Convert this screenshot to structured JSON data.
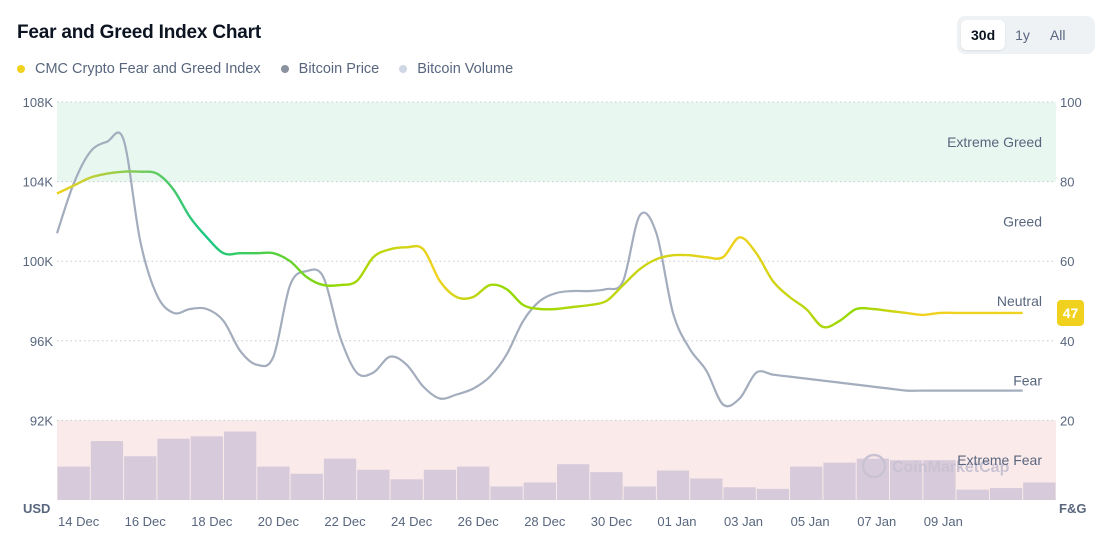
{
  "title": "Fear and Greed Index Chart",
  "legend": [
    {
      "label": "CMC Crypto Fear and Greed Index",
      "color": "#f0d21e"
    },
    {
      "label": "Bitcoin Price",
      "color": "#8a929f"
    },
    {
      "label": "Bitcoin Volume",
      "color": "#cfd6e4"
    }
  ],
  "range_buttons": [
    {
      "label": "30d",
      "active": true
    },
    {
      "label": "1y",
      "active": false
    },
    {
      "label": "All",
      "active": false
    }
  ],
  "watermark": "CoinMarketCap",
  "colors": {
    "fear_greed_line_start": "#16c784",
    "fear_greed_line_mid": "#93d900",
    "fear_greed_line_end": "#f0d21e",
    "btc_price_line": "#a3adbd",
    "btc_volume_bars": "#d7cbdb",
    "extreme_greed_band": "#e9f7f1",
    "extreme_fear_band": "#fbeaea",
    "badge": "#f0d21e"
  },
  "chart_data": {
    "type": "line",
    "x_unit": "day",
    "x_ticks": [
      "14 Dec",
      "16 Dec",
      "18 Dec",
      "20 Dec",
      "22 Dec",
      "24 Dec",
      "26 Dec",
      "28 Dec",
      "30 Dec",
      "01 Jan",
      "03 Jan",
      "05 Jan",
      "07 Jan",
      "09 Jan"
    ],
    "left_axis": {
      "label": "USD",
      "ticks": [
        "108K",
        "104K",
        "100K",
        "96K",
        "92K"
      ],
      "range": [
        88000,
        108000
      ]
    },
    "right_axis": {
      "label": "F&G",
      "ticks": [
        "100",
        "80",
        "60",
        "40",
        "20"
      ],
      "range": [
        0,
        100
      ]
    },
    "zones": [
      {
        "label": "Extreme Greed",
        "range": [
          80,
          100
        ],
        "shaded": true
      },
      {
        "label": "Greed",
        "range": [
          60,
          80
        ],
        "shaded": false
      },
      {
        "label": "Neutral",
        "range": [
          40,
          60
        ],
        "shaded": false
      },
      {
        "label": "Fear",
        "range": [
          20,
          40
        ],
        "shaded": false
      },
      {
        "label": "Extreme Fear",
        "range": [
          0,
          20
        ],
        "shaded": true
      }
    ],
    "series": [
      {
        "name": "CMC Crypto Fear and Greed Index",
        "axis": "right",
        "x": [
          0,
          0.5,
          1,
          1.5,
          2,
          2.5,
          3,
          3.5,
          4,
          4.5,
          5,
          5.5,
          6,
          6.5,
          7,
          7.5,
          8,
          8.5,
          9,
          9.5,
          10,
          10.5,
          11,
          11.5,
          12,
          12.5,
          13,
          13.5,
          14,
          14.5,
          15,
          15.5,
          16,
          16.5,
          17,
          17.5,
          18,
          18.5,
          19,
          19.5,
          20,
          20.5,
          21,
          21.5,
          22,
          22.5,
          23,
          23.5,
          24,
          24.5,
          25,
          25.5,
          26,
          26.5,
          27,
          27.5,
          28,
          28.5,
          29
        ],
        "values": [
          77,
          79,
          81,
          82,
          82.5,
          82.5,
          82,
          78,
          71,
          66,
          62,
          62,
          62,
          62,
          60,
          56,
          54,
          54,
          55,
          61,
          63,
          63.5,
          63,
          55,
          51,
          51,
          54,
          53,
          49,
          48,
          48,
          48.5,
          49,
          50,
          54,
          58,
          60.5,
          61.5,
          61.5,
          61,
          61,
          66,
          62,
          55,
          51,
          48,
          43.5,
          45,
          48,
          48,
          47.5,
          47,
          46.5,
          47,
          47,
          47,
          47,
          47,
          47
        ],
        "current_value": 47
      },
      {
        "name": "Bitcoin Price",
        "axis": "left",
        "x": [
          0,
          0.5,
          1,
          1.5,
          2,
          2.5,
          3,
          3.5,
          4,
          4.5,
          5,
          5.5,
          6,
          6.5,
          7,
          7.5,
          8,
          8.5,
          9,
          9.5,
          10,
          10.5,
          11,
          11.5,
          12,
          12.5,
          13,
          13.5,
          14,
          14.5,
          15,
          15.5,
          16,
          16.5,
          17,
          17.5,
          18,
          18.5,
          19,
          19.5,
          20,
          20.5,
          21,
          21.5,
          22,
          22.5,
          23,
          23.5,
          24,
          24.5,
          25,
          25.5,
          26,
          26.5,
          27,
          27.5,
          28,
          28.5,
          29
        ],
        "values": [
          101400,
          103900,
          105500,
          106000,
          106100,
          101000,
          98300,
          97400,
          97600,
          97600,
          97000,
          95500,
          94800,
          95200,
          98800,
          99500,
          99200,
          96200,
          94400,
          94400,
          95200,
          94800,
          93700,
          93100,
          93300,
          93600,
          94200,
          95300,
          97000,
          98000,
          98400,
          98500,
          98500,
          98600,
          99000,
          102300,
          101400,
          97400,
          95600,
          94500,
          92800,
          93100,
          94400,
          94300,
          94200,
          94100,
          94000,
          93900,
          93800,
          93700,
          93600,
          93500,
          93500,
          93500,
          93500,
          93500,
          93500,
          93500,
          93500
        ]
      },
      {
        "name": "Bitcoin Volume",
        "type": "bar",
        "x": [
          0,
          1,
          2,
          3,
          4,
          5,
          6,
          7,
          8,
          9,
          10,
          11,
          12,
          13,
          14,
          15,
          16,
          17,
          18,
          19,
          20,
          21,
          22,
          23,
          24,
          25,
          26,
          27,
          28,
          29
        ],
        "values": [
          42,
          74,
          55,
          77,
          80,
          86,
          42,
          33,
          52,
          38,
          26,
          38,
          42,
          17,
          22,
          45,
          35,
          17,
          37,
          27,
          16,
          14,
          42,
          47,
          52,
          50,
          50,
          13,
          15,
          22
        ],
        "unit": "relative %"
      }
    ]
  }
}
